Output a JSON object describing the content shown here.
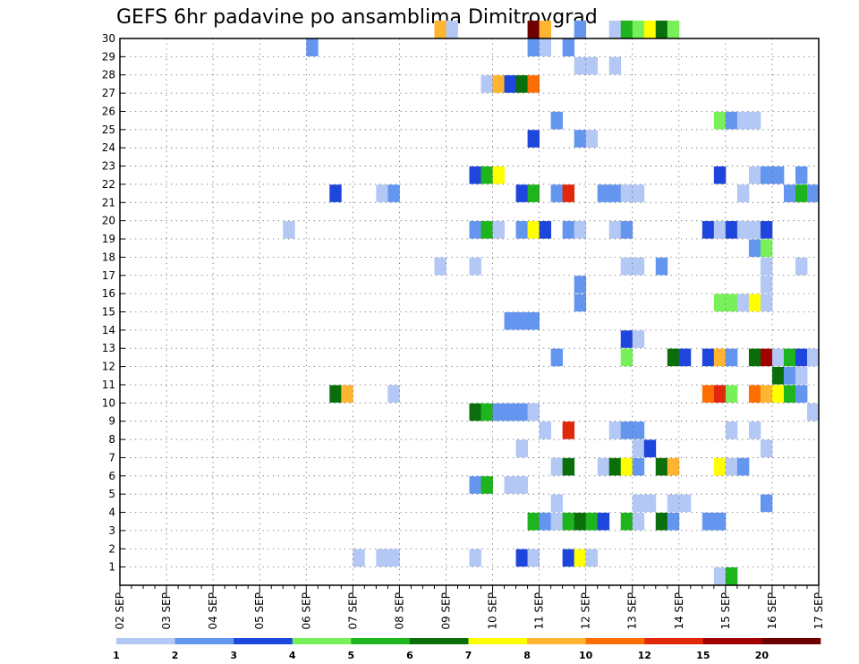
{
  "chart_data": {
    "type": "heatmap",
    "title": "GEFS 6hr padavine po ansamblima Dimitrovgrad",
    "xlabel": "",
    "ylabel": "",
    "x_tick_labels": [
      "02 SEP",
      "03 SEP",
      "04 SEP",
      "05 SEP",
      "06 SEP",
      "07 SEP",
      "08 SEP",
      "09 SEP",
      "10 SEP",
      "11 SEP",
      "12 SEP",
      "13 SEP",
      "14 SEP",
      "15 SEP",
      "16 SEP",
      "17 SEP"
    ],
    "x_range": [
      "02 SEP 00Z",
      "17 SEP 00Z"
    ],
    "time_step_hours": 6,
    "y_tick_labels": [
      "1",
      "2",
      "3",
      "4",
      "5",
      "6",
      "7",
      "8",
      "9",
      "10",
      "11",
      "12",
      "13",
      "14",
      "15",
      "16",
      "17",
      "18",
      "19",
      "20",
      "21",
      "22",
      "23",
      "24",
      "25",
      "26",
      "27",
      "28",
      "29",
      "30"
    ],
    "y_range": [
      0,
      30
    ],
    "grid": true,
    "colorbar": {
      "placement": "bottom",
      "colors": [
        "#b4c8f5",
        "#6496f0",
        "#1e46dc",
        "#78f05a",
        "#1eb41e",
        "#0a6e0a",
        "#ffff00",
        "#ffb432",
        "#ff6e00",
        "#e1280a",
        "#a00000",
        "#6e0000"
      ],
      "labels": [
        "1",
        "2",
        "3",
        "4",
        "5",
        "6",
        "7",
        "8",
        "10",
        "12",
        "15",
        "20"
      ]
    },
    "cells": [
      {
        "m": 30,
        "t": "08 SEP 18Z",
        "c": 8
      },
      {
        "m": 30,
        "t": "09 SEP 00Z",
        "c": 1
      },
      {
        "m": 30,
        "t": "10 SEP 18Z",
        "c": 12
      },
      {
        "m": 30,
        "t": "11 SEP 00Z",
        "c": 8
      },
      {
        "m": 30,
        "t": "11 SEP 18Z",
        "c": 2
      },
      {
        "m": 30,
        "t": "12 SEP 12Z",
        "c": 1
      },
      {
        "m": 30,
        "t": "12 SEP 18Z",
        "c": 5
      },
      {
        "m": 30,
        "t": "13 SEP 00Z",
        "c": 4
      },
      {
        "m": 30,
        "t": "13 SEP 06Z",
        "c": 7
      },
      {
        "m": 30,
        "t": "13 SEP 12Z",
        "c": 6
      },
      {
        "m": 30,
        "t": "13 SEP 18Z",
        "c": 4
      },
      {
        "m": 29,
        "t": "06 SEP 00Z",
        "c": 2
      },
      {
        "m": 29,
        "t": "10 SEP 18Z",
        "c": 2
      },
      {
        "m": 29,
        "t": "11 SEP 00Z",
        "c": 1
      },
      {
        "m": 29,
        "t": "11 SEP 12Z",
        "c": 2
      },
      {
        "m": 28,
        "t": "11 SEP 18Z",
        "c": 1
      },
      {
        "m": 28,
        "t": "12 SEP 00Z",
        "c": 1
      },
      {
        "m": 28,
        "t": "12 SEP 12Z",
        "c": 1
      },
      {
        "m": 27,
        "t": "09 SEP 18Z",
        "c": 1
      },
      {
        "m": 27,
        "t": "10 SEP 00Z",
        "c": 8
      },
      {
        "m": 27,
        "t": "10 SEP 06Z",
        "c": 3
      },
      {
        "m": 27,
        "t": "10 SEP 12Z",
        "c": 6
      },
      {
        "m": 27,
        "t": "10 SEP 18Z",
        "c": 9
      },
      {
        "m": 25,
        "t": "11 SEP 06Z",
        "c": 2
      },
      {
        "m": 25,
        "t": "14 SEP 18Z",
        "c": 4
      },
      {
        "m": 25,
        "t": "15 SEP 00Z",
        "c": 2
      },
      {
        "m": 25,
        "t": "15 SEP 06Z",
        "c": 1
      },
      {
        "m": 25,
        "t": "15 SEP 12Z",
        "c": 1
      },
      {
        "m": 24,
        "t": "10 SEP 18Z",
        "c": 3
      },
      {
        "m": 24,
        "t": "11 SEP 18Z",
        "c": 2
      },
      {
        "m": 24,
        "t": "12 SEP 00Z",
        "c": 1
      },
      {
        "m": 22,
        "t": "09 SEP 12Z",
        "c": 3
      },
      {
        "m": 22,
        "t": "09 SEP 18Z",
        "c": 5
      },
      {
        "m": 22,
        "t": "10 SEP 00Z",
        "c": 7
      },
      {
        "m": 22,
        "t": "14 SEP 18Z",
        "c": 3
      },
      {
        "m": 22,
        "t": "15 SEP 12Z",
        "c": 1
      },
      {
        "m": 22,
        "t": "15 SEP 18Z",
        "c": 2
      },
      {
        "m": 22,
        "t": "16 SEP 00Z",
        "c": 2
      },
      {
        "m": 22,
        "t": "16 SEP 12Z",
        "c": 2
      },
      {
        "m": 21,
        "t": "06 SEP 12Z",
        "c": 3
      },
      {
        "m": 21,
        "t": "07 SEP 12Z",
        "c": 1
      },
      {
        "m": 21,
        "t": "07 SEP 18Z",
        "c": 2
      },
      {
        "m": 21,
        "t": "10 SEP 12Z",
        "c": 3
      },
      {
        "m": 21,
        "t": "10 SEP 18Z",
        "c": 5
      },
      {
        "m": 21,
        "t": "11 SEP 06Z",
        "c": 2
      },
      {
        "m": 21,
        "t": "11 SEP 12Z",
        "c": 10
      },
      {
        "m": 21,
        "t": "12 SEP 06Z",
        "c": 2
      },
      {
        "m": 21,
        "t": "12 SEP 12Z",
        "c": 2
      },
      {
        "m": 21,
        "t": "12 SEP 18Z",
        "c": 1
      },
      {
        "m": 21,
        "t": "13 SEP 00Z",
        "c": 1
      },
      {
        "m": 21,
        "t": "15 SEP 06Z",
        "c": 1
      },
      {
        "m": 21,
        "t": "16 SEP 06Z",
        "c": 2
      },
      {
        "m": 21,
        "t": "16 SEP 12Z",
        "c": 5
      },
      {
        "m": 21,
        "t": "16 SEP 18Z",
        "c": 2
      },
      {
        "m": 19,
        "t": "05 SEP 12Z",
        "c": 1
      },
      {
        "m": 19,
        "t": "09 SEP 12Z",
        "c": 2
      },
      {
        "m": 19,
        "t": "09 SEP 18Z",
        "c": 5
      },
      {
        "m": 19,
        "t": "10 SEP 00Z",
        "c": 1
      },
      {
        "m": 19,
        "t": "10 SEP 12Z",
        "c": 2
      },
      {
        "m": 19,
        "t": "10 SEP 18Z",
        "c": 7
      },
      {
        "m": 19,
        "t": "11 SEP 00Z",
        "c": 3
      },
      {
        "m": 19,
        "t": "11 SEP 12Z",
        "c": 2
      },
      {
        "m": 19,
        "t": "11 SEP 18Z",
        "c": 1
      },
      {
        "m": 19,
        "t": "12 SEP 12Z",
        "c": 1
      },
      {
        "m": 19,
        "t": "12 SEP 18Z",
        "c": 2
      },
      {
        "m": 19,
        "t": "14 SEP 12Z",
        "c": 3
      },
      {
        "m": 19,
        "t": "14 SEP 18Z",
        "c": 1
      },
      {
        "m": 19,
        "t": "15 SEP 00Z",
        "c": 3
      },
      {
        "m": 19,
        "t": "15 SEP 06Z",
        "c": 1
      },
      {
        "m": 19,
        "t": "15 SEP 12Z",
        "c": 1
      },
      {
        "m": 19,
        "t": "15 SEP 18Z",
        "c": 3
      },
      {
        "m": 18,
        "t": "15 SEP 12Z",
        "c": 2
      },
      {
        "m": 18,
        "t": "15 SEP 18Z",
        "c": 4
      },
      {
        "m": 17,
        "t": "08 SEP 18Z",
        "c": 1
      },
      {
        "m": 17,
        "t": "09 SEP 12Z",
        "c": 1
      },
      {
        "m": 17,
        "t": "12 SEP 18Z",
        "c": 1
      },
      {
        "m": 17,
        "t": "13 SEP 00Z",
        "c": 1
      },
      {
        "m": 17,
        "t": "13 SEP 12Z",
        "c": 2
      },
      {
        "m": 17,
        "t": "15 SEP 18Z",
        "c": 1
      },
      {
        "m": 17,
        "t": "16 SEP 12Z",
        "c": 1
      },
      {
        "m": 16,
        "t": "11 SEP 18Z",
        "c": 2
      },
      {
        "m": 16,
        "t": "15 SEP 18Z",
        "c": 1
      },
      {
        "m": 15,
        "t": "11 SEP 18Z",
        "c": 2
      },
      {
        "m": 15,
        "t": "14 SEP 18Z",
        "c": 4
      },
      {
        "m": 15,
        "t": "15 SEP 00Z",
        "c": 4
      },
      {
        "m": 15,
        "t": "15 SEP 06Z",
        "c": 1
      },
      {
        "m": 15,
        "t": "15 SEP 12Z",
        "c": 7
      },
      {
        "m": 15,
        "t": "15 SEP 18Z",
        "c": 1
      },
      {
        "m": 14,
        "t": "10 SEP 06Z",
        "c": 2
      },
      {
        "m": 14,
        "t": "10 SEP 12Z",
        "c": 2
      },
      {
        "m": 14,
        "t": "10 SEP 18Z",
        "c": 2
      },
      {
        "m": 13,
        "t": "12 SEP 18Z",
        "c": 3
      },
      {
        "m": 13,
        "t": "13 SEP 00Z",
        "c": 1
      },
      {
        "m": 12,
        "t": "11 SEP 06Z",
        "c": 2
      },
      {
        "m": 12,
        "t": "12 SEP 18Z",
        "c": 4
      },
      {
        "m": 12,
        "t": "13 SEP 18Z",
        "c": 6
      },
      {
        "m": 12,
        "t": "14 SEP 00Z",
        "c": 3
      },
      {
        "m": 12,
        "t": "14 SEP 12Z",
        "c": 3
      },
      {
        "m": 12,
        "t": "14 SEP 18Z",
        "c": 8
      },
      {
        "m": 12,
        "t": "15 SEP 00Z",
        "c": 2
      },
      {
        "m": 12,
        "t": "15 SEP 12Z",
        "c": 6
      },
      {
        "m": 12,
        "t": "15 SEP 18Z",
        "c": 11
      },
      {
        "m": 12,
        "t": "16 SEP 00Z",
        "c": 1
      },
      {
        "m": 12,
        "t": "16 SEP 06Z",
        "c": 5
      },
      {
        "m": 12,
        "t": "16 SEP 12Z",
        "c": 3
      },
      {
        "m": 12,
        "t": "16 SEP 18Z",
        "c": 1
      },
      {
        "m": 11,
        "t": "16 SEP 00Z",
        "c": 6
      },
      {
        "m": 11,
        "t": "16 SEP 06Z",
        "c": 2
      },
      {
        "m": 11,
        "t": "16 SEP 12Z",
        "c": 1
      },
      {
        "m": 10,
        "t": "06 SEP 12Z",
        "c": 6
      },
      {
        "m": 10,
        "t": "06 SEP 18Z",
        "c": 8
      },
      {
        "m": 10,
        "t": "07 SEP 18Z",
        "c": 1
      },
      {
        "m": 10,
        "t": "14 SEP 12Z",
        "c": 9
      },
      {
        "m": 10,
        "t": "14 SEP 18Z",
        "c": 10
      },
      {
        "m": 10,
        "t": "15 SEP 00Z",
        "c": 4
      },
      {
        "m": 10,
        "t": "15 SEP 12Z",
        "c": 9
      },
      {
        "m": 10,
        "t": "15 SEP 18Z",
        "c": 8
      },
      {
        "m": 10,
        "t": "16 SEP 00Z",
        "c": 7
      },
      {
        "m": 10,
        "t": "16 SEP 06Z",
        "c": 5
      },
      {
        "m": 10,
        "t": "16 SEP 12Z",
        "c": 2
      },
      {
        "m": 9,
        "t": "09 SEP 12Z",
        "c": 6
      },
      {
        "m": 9,
        "t": "09 SEP 18Z",
        "c": 5
      },
      {
        "m": 9,
        "t": "10 SEP 00Z",
        "c": 2
      },
      {
        "m": 9,
        "t": "10 SEP 06Z",
        "c": 2
      },
      {
        "m": 9,
        "t": "10 SEP 12Z",
        "c": 2
      },
      {
        "m": 9,
        "t": "10 SEP 18Z",
        "c": 1
      },
      {
        "m": 9,
        "t": "16 SEP 18Z",
        "c": 1
      },
      {
        "m": 8,
        "t": "11 SEP 00Z",
        "c": 1
      },
      {
        "m": 8,
        "t": "11 SEP 12Z",
        "c": 10
      },
      {
        "m": 8,
        "t": "12 SEP 12Z",
        "c": 1
      },
      {
        "m": 8,
        "t": "12 SEP 18Z",
        "c": 2
      },
      {
        "m": 8,
        "t": "13 SEP 00Z",
        "c": 2
      },
      {
        "m": 8,
        "t": "15 SEP 00Z",
        "c": 1
      },
      {
        "m": 8,
        "t": "15 SEP 12Z",
        "c": 1
      },
      {
        "m": 7,
        "t": "10 SEP 12Z",
        "c": 1
      },
      {
        "m": 7,
        "t": "13 SEP 00Z",
        "c": 1
      },
      {
        "m": 7,
        "t": "13 SEP 06Z",
        "c": 3
      },
      {
        "m": 7,
        "t": "15 SEP 18Z",
        "c": 1
      },
      {
        "m": 6,
        "t": "11 SEP 06Z",
        "c": 1
      },
      {
        "m": 6,
        "t": "11 SEP 12Z",
        "c": 6
      },
      {
        "m": 6,
        "t": "12 SEP 06Z",
        "c": 1
      },
      {
        "m": 6,
        "t": "12 SEP 12Z",
        "c": 6
      },
      {
        "m": 6,
        "t": "12 SEP 18Z",
        "c": 7
      },
      {
        "m": 6,
        "t": "13 SEP 00Z",
        "c": 2
      },
      {
        "m": 6,
        "t": "13 SEP 12Z",
        "c": 6
      },
      {
        "m": 6,
        "t": "13 SEP 18Z",
        "c": 8
      },
      {
        "m": 6,
        "t": "14 SEP 18Z",
        "c": 7
      },
      {
        "m": 6,
        "t": "15 SEP 00Z",
        "c": 1
      },
      {
        "m": 6,
        "t": "15 SEP 06Z",
        "c": 2
      },
      {
        "m": 5,
        "t": "09 SEP 12Z",
        "c": 2
      },
      {
        "m": 5,
        "t": "09 SEP 18Z",
        "c": 5
      },
      {
        "m": 5,
        "t": "10 SEP 06Z",
        "c": 1
      },
      {
        "m": 5,
        "t": "10 SEP 12Z",
        "c": 1
      },
      {
        "m": 4,
        "t": "11 SEP 06Z",
        "c": 1
      },
      {
        "m": 4,
        "t": "13 SEP 00Z",
        "c": 1
      },
      {
        "m": 4,
        "t": "13 SEP 06Z",
        "c": 1
      },
      {
        "m": 4,
        "t": "13 SEP 18Z",
        "c": 1
      },
      {
        "m": 4,
        "t": "14 SEP 00Z",
        "c": 1
      },
      {
        "m": 4,
        "t": "15 SEP 18Z",
        "c": 2
      },
      {
        "m": 3,
        "t": "10 SEP 18Z",
        "c": 5
      },
      {
        "m": 3,
        "t": "11 SEP 00Z",
        "c": 2
      },
      {
        "m": 3,
        "t": "11 SEP 06Z",
        "c": 1
      },
      {
        "m": 3,
        "t": "11 SEP 12Z",
        "c": 5
      },
      {
        "m": 3,
        "t": "11 SEP 18Z",
        "c": 6
      },
      {
        "m": 3,
        "t": "12 SEP 00Z",
        "c": 5
      },
      {
        "m": 3,
        "t": "12 SEP 06Z",
        "c": 3
      },
      {
        "m": 3,
        "t": "12 SEP 18Z",
        "c": 5
      },
      {
        "m": 3,
        "t": "13 SEP 00Z",
        "c": 1
      },
      {
        "m": 3,
        "t": "13 SEP 12Z",
        "c": 6
      },
      {
        "m": 3,
        "t": "13 SEP 18Z",
        "c": 2
      },
      {
        "m": 3,
        "t": "14 SEP 12Z",
        "c": 2
      },
      {
        "m": 3,
        "t": "14 SEP 18Z",
        "c": 2
      },
      {
        "m": 1,
        "t": "07 SEP 00Z",
        "c": 1
      },
      {
        "m": 1,
        "t": "07 SEP 12Z",
        "c": 1
      },
      {
        "m": 1,
        "t": "07 SEP 18Z",
        "c": 1
      },
      {
        "m": 1,
        "t": "09 SEP 12Z",
        "c": 1
      },
      {
        "m": 1,
        "t": "10 SEP 12Z",
        "c": 3
      },
      {
        "m": 1,
        "t": "10 SEP 18Z",
        "c": 1
      },
      {
        "m": 1,
        "t": "11 SEP 12Z",
        "c": 3
      },
      {
        "m": 1,
        "t": "11 SEP 18Z",
        "c": 7
      },
      {
        "m": 1,
        "t": "12 SEP 00Z",
        "c": 1
      },
      {
        "m": 0,
        "t": "14 SEP 18Z",
        "c": 1
      },
      {
        "m": 0,
        "t": "15 SEP 00Z",
        "c": 5
      }
    ]
  }
}
